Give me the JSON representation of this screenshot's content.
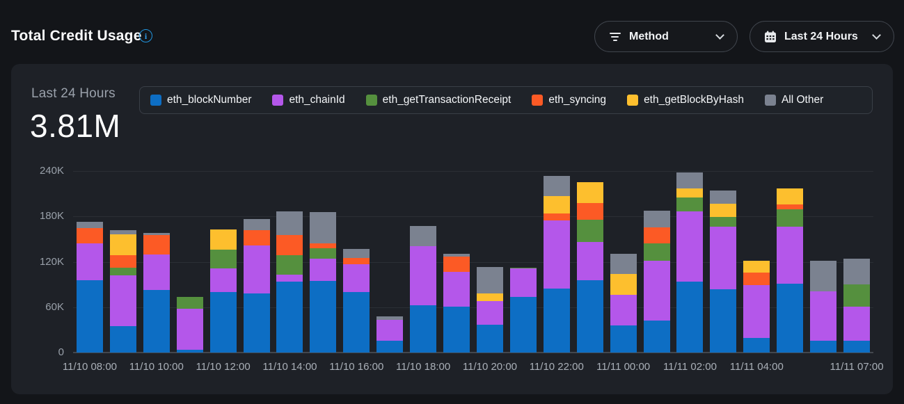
{
  "header": {
    "title": "Total Credit Usage"
  },
  "filters": {
    "method": {
      "label": "Method"
    },
    "range": {
      "label": "Last 24 Hours"
    }
  },
  "summary": {
    "period_label": "Last 24 Hours",
    "total": "3.81M"
  },
  "colors": {
    "page_bg": "#131519",
    "card_bg": "#1e2127",
    "accent_info": "#2196e0",
    "gridline": "#2b2f35",
    "axis_text": "#99a0a9"
  },
  "chart_data": {
    "type": "bar",
    "stacked": true,
    "title": "Total Credit Usage - Last 24 Hours",
    "unit": "thousands of credits",
    "ylim": [
      0,
      240
    ],
    "ytick_values": [
      0,
      60,
      120,
      180,
      240
    ],
    "ytick_labels": [
      "0",
      "60K",
      "120K",
      "180K",
      "240K"
    ],
    "grid": true,
    "legend_position": "top",
    "x": [
      "11/10 08:00",
      "11/10 09:00",
      "11/10 10:00",
      "11/10 11:00",
      "11/10 12:00",
      "11/10 13:00",
      "11/10 14:00",
      "11/10 15:00",
      "11/10 16:00",
      "11/10 17:00",
      "11/10 18:00",
      "11/10 19:00",
      "11/10 20:00",
      "11/10 21:00",
      "11/10 22:00",
      "11/10 23:00",
      "11/11 00:00",
      "11/11 01:00",
      "11/11 02:00",
      "11/11 03:00",
      "11/11 04:00",
      "11/11 05:00",
      "11/11 06:00",
      "11/11 07:00"
    ],
    "x_tick_labels": [
      "11/10 08:00",
      "11/10 10:00",
      "11/10 12:00",
      "11/10 14:00",
      "11/10 16:00",
      "11/10 18:00",
      "11/10 20:00",
      "11/10 22:00",
      "11/11 00:00",
      "11/11 02:00",
      "11/11 04:00",
      "11/11 07:00"
    ],
    "x_tick_indices": [
      0,
      2,
      4,
      6,
      8,
      10,
      12,
      14,
      16,
      18,
      20,
      23
    ],
    "series": [
      {
        "name": "eth_blockNumber",
        "color": "#0d6ec4",
        "values": [
          96,
          35,
          83,
          4,
          80,
          78,
          94,
          95,
          80,
          16,
          63,
          61,
          37,
          74,
          85,
          96,
          36,
          42,
          94,
          84,
          19,
          91,
          16,
          16
        ]
      },
      {
        "name": "eth_chainId",
        "color": "#b457ea",
        "values": [
          48,
          67,
          47,
          54,
          31,
          64,
          9,
          29,
          37,
          27,
          78,
          46,
          31,
          37,
          90,
          50,
          40,
          79,
          93,
          82,
          70,
          75,
          65,
          45
        ]
      },
      {
        "name": "eth_getTransactionReceipt",
        "color": "#55903e",
        "values": [
          0,
          10,
          0,
          16,
          25,
          0,
          26,
          14,
          0,
          0,
          0,
          0,
          0,
          1,
          0,
          30,
          0,
          23,
          18,
          13,
          0,
          23,
          0,
          29
        ]
      },
      {
        "name": "eth_syncing",
        "color": "#fc5a25",
        "values": [
          21,
          17,
          25,
          0,
          0,
          20,
          26,
          6,
          8,
          0,
          0,
          20,
          0,
          0,
          9,
          22,
          0,
          22,
          0,
          0,
          17,
          7,
          0,
          0
        ]
      },
      {
        "name": "eth_getBlockByHash",
        "color": "#fdbf2e",
        "values": [
          0,
          27,
          0,
          0,
          27,
          0,
          0,
          0,
          0,
          0,
          0,
          0,
          10,
          0,
          23,
          27,
          28,
          0,
          12,
          18,
          15,
          21,
          0,
          0
        ]
      },
      {
        "name": "All Other",
        "color": "#7b8290",
        "values": [
          8,
          6,
          3,
          0,
          0,
          15,
          32,
          42,
          12,
          5,
          26,
          4,
          35,
          0,
          27,
          0,
          27,
          22,
          21,
          17,
          0,
          0,
          40,
          34
        ]
      }
    ]
  }
}
